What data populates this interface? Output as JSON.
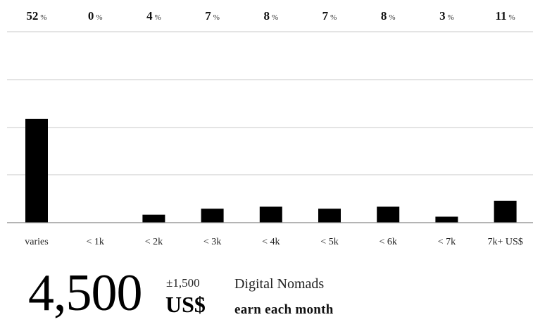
{
  "chart_data": {
    "type": "bar",
    "categories": [
      "varies",
      "< 1k",
      "< 2k",
      "< 3k",
      "< 4k",
      "< 5k",
      "< 6k",
      "< 7k",
      "7k+ US$"
    ],
    "values": [
      52,
      0,
      4,
      7,
      8,
      7,
      8,
      3,
      11
    ],
    "value_unit": "%",
    "title": "",
    "xlabel": "",
    "ylabel": "",
    "grid": true,
    "legend": "none",
    "bar_color": "#000000",
    "grid_color": "#c8c8c8"
  },
  "summary": {
    "amount": "4,500",
    "range": "±1,500",
    "currency": "US$",
    "line1": "Digital Nomads",
    "line2": "earn each month"
  }
}
